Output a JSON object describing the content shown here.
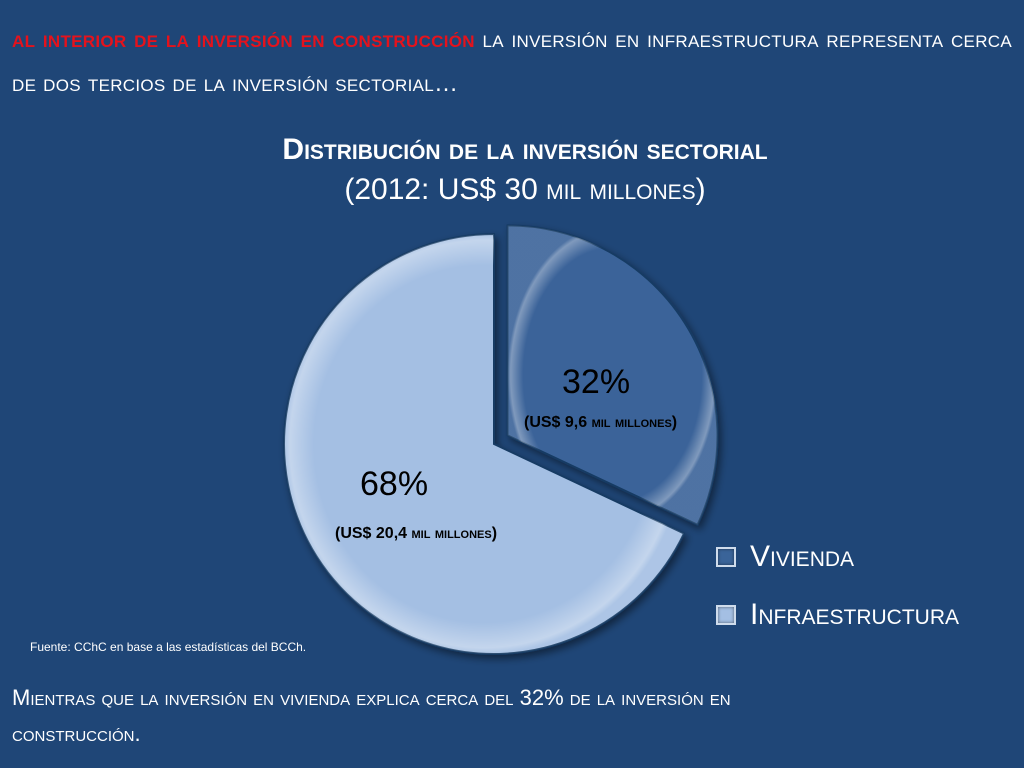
{
  "heading": {
    "lead": "al interior de la inversión en construcción",
    "rest": "la inversión en infraestructura representa cerca de dos tercios de la inversión sectorial…"
  },
  "chart_data": {
    "type": "pie",
    "title": "Distribución de la inversión sectorial",
    "subtitle": "(2012: US$ 30 mil millones)",
    "slices": [
      {
        "name": "Vivienda",
        "value": 32,
        "label": "32%",
        "amount": "(US$ 9,6 mil millones)",
        "color": "#3a6499",
        "exploded": true
      },
      {
        "name": "Infraestructura",
        "value": 68,
        "label": "68%",
        "amount": "(US$ 20,4 mil millones)",
        "color": "#a4bfe3",
        "exploded": false
      }
    ],
    "legend_position": "bottom-right"
  },
  "source": "Fuente: CChC en base a las estadísticas del BCCh.",
  "footer": "Mientras que la inversión en vivienda explica cerca del 32% de la inversión en construcción."
}
